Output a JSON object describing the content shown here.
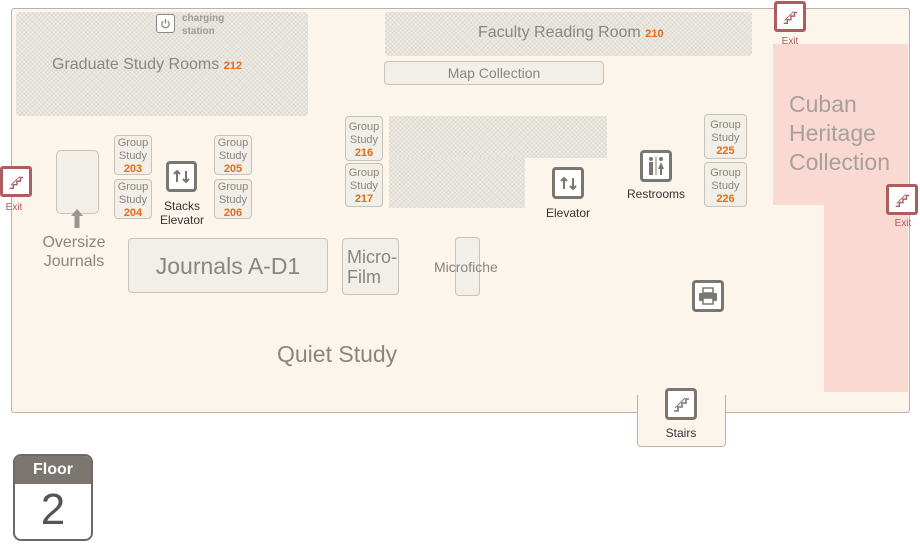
{
  "rooms": {
    "graduate": {
      "label": "Graduate Study Rooms",
      "number": "212"
    },
    "faculty": {
      "label": "Faculty Reading Room",
      "number": "210"
    },
    "map_collection": "Map Collection",
    "cuban": [
      "Cuban",
      "Heritage",
      "Collection"
    ],
    "journals": "Journals A-D1",
    "microfilm": [
      "Micro-",
      "Film"
    ],
    "microfiche": "Microfiche",
    "quiet_study": "Quiet Study",
    "oversize": [
      "Oversize",
      "Journals"
    ]
  },
  "group_study": {
    "label": [
      "Group",
      "Study"
    ],
    "rooms": [
      "203",
      "204",
      "205",
      "206",
      "216",
      "217",
      "225",
      "226"
    ]
  },
  "amenities": {
    "charging": [
      "charging",
      "station"
    ],
    "stacks_elevator": [
      "Stacks",
      "Elevator"
    ],
    "elevator": "Elevator",
    "restrooms": "Restrooms",
    "stairs": "Stairs",
    "exit": "Exit"
  },
  "floor_badge": {
    "label": "Floor",
    "number": "2"
  },
  "colors": {
    "floor_fill": "#fcf5ec",
    "room_number": "#e06c1c",
    "exit": "#ad5d5d",
    "special_collection": "#f9d9d2",
    "icon": "#7b7670"
  }
}
